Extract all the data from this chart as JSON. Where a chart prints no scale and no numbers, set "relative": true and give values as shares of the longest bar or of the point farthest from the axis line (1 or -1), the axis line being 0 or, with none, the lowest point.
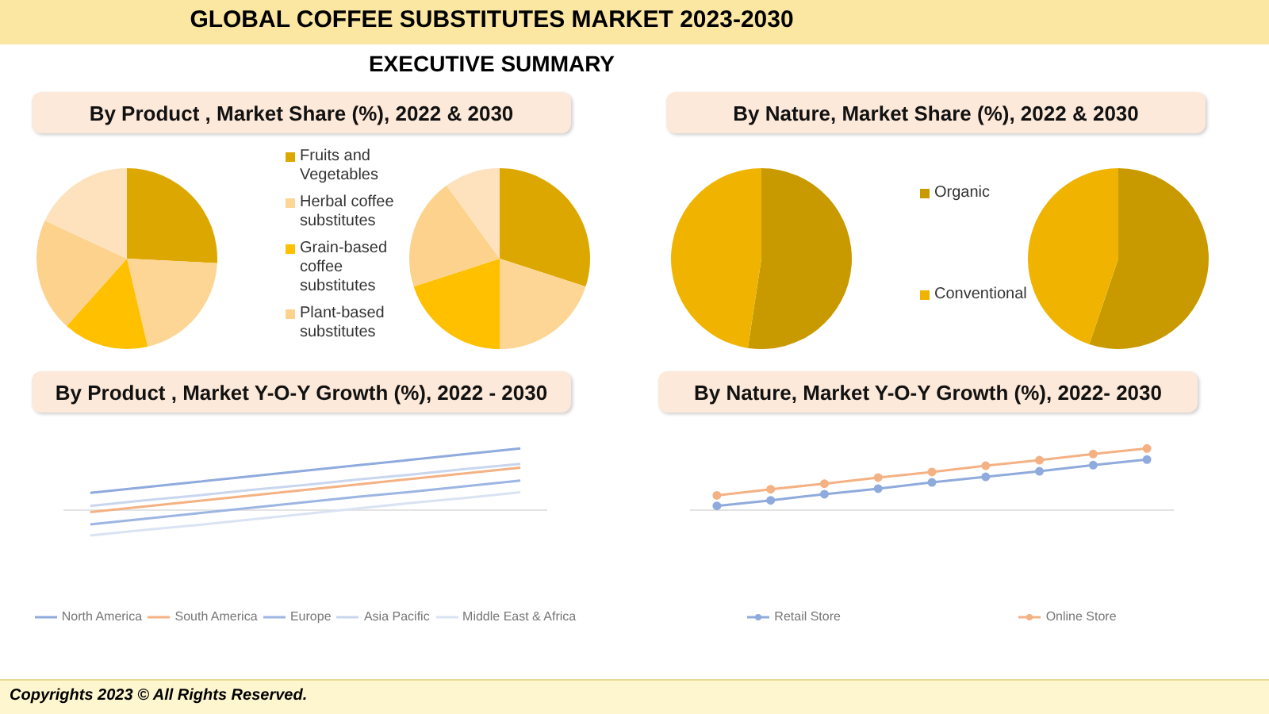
{
  "chart_data": [
    {
      "type": "other",
      "title": "GLOBAL COFFEE SUBSTITUTES MARKET 2023-2030",
      "subtitle": "EXECUTIVE SUMMARY",
      "annotations": [
        "Copyrights 2023 © All Rights Reserved."
      ]
    },
    {
      "type": "pie",
      "title": "By Product , Market Share (%), 2022 & 2030",
      "categories": [
        "Fruits and Vegetables",
        "Herbal coffee substitutes",
        "Grain-based coffee substitutes",
        "Plant-based substitutes",
        null
      ],
      "values": [
        25.8,
        20.5,
        15.3,
        20.3,
        18.1
      ],
      "colors": [
        "#dca800",
        "#fdd594",
        "#ffc000",
        "#fdd28c",
        "#fde2bd"
      ],
      "legend": "right"
    },
    {
      "type": "pie",
      "categories": [
        null,
        null,
        null,
        null,
        null
      ],
      "values": [
        30,
        20,
        20,
        20,
        10
      ],
      "colors": [
        "#dca800",
        "#fdd594",
        "#ffc000",
        "#fdd28c",
        "#fde2bd"
      ]
    },
    {
      "type": "pie",
      "title": "By Nature, Market Share (%), 2022 & 2030",
      "categories": [
        "Organic",
        "Conventional"
      ],
      "values": [
        52.4,
        47.6
      ],
      "colors": [
        "#c99a00",
        "#f0b400"
      ],
      "legend": "right"
    },
    {
      "type": "pie",
      "categories": [
        null,
        null
      ],
      "values": [
        55.2,
        44.8
      ],
      "colors": [
        "#c99a00",
        "#f0b400"
      ]
    },
    {
      "type": "line",
      "title": "By Product , Market Y-O-Y Growth (%), 2022 - 2030",
      "categories": [
        null,
        null,
        null,
        null,
        null,
        null,
        null,
        null,
        null
      ],
      "relative": true,
      "legend": "bottom",
      "series": [
        {
          "name": "North America",
          "color": "#8faadc",
          "values": [
            0.28,
            0.37,
            0.46,
            0.55,
            0.64,
            0.73,
            0.82,
            0.91,
            1
          ]
        },
        {
          "name": "South America",
          "color": "#f4b183",
          "values": [
            -0.03,
            0.06,
            0.15,
            0.24,
            0.33,
            0.42,
            0.51,
            0.6,
            0.69
          ]
        },
        {
          "name": "Europe",
          "color": "#9db5e3",
          "values": [
            -0.23,
            -0.14,
            -0.05,
            0.04,
            0.13,
            0.22,
            0.3,
            0.39,
            0.48
          ]
        },
        {
          "name": "Asia Pacific",
          "color": "#c9d6ee",
          "values": [
            0.07,
            0.16,
            0.24,
            0.33,
            0.41,
            0.5,
            0.58,
            0.67,
            0.75
          ]
        },
        {
          "name": "Middle East & Africa",
          "color": "#dae3f3",
          "values": [
            -0.41,
            -0.32,
            -0.24,
            -0.15,
            -0.06,
            0.03,
            0.12,
            0.2,
            0.29
          ]
        }
      ]
    },
    {
      "type": "line",
      "title": "By Nature, Market Y-O-Y Growth (%), 2022- 2030",
      "categories": [
        null,
        null,
        null,
        null,
        null,
        null,
        null,
        null,
        null
      ],
      "relative": true,
      "legend": "bottom",
      "marker": "circle",
      "series": [
        {
          "name": "Retail Store",
          "color": "#8faadc",
          "values": [
            0.07,
            0.16,
            0.26,
            0.35,
            0.45,
            0.54,
            0.63,
            0.73,
            0.82
          ]
        },
        {
          "name": "Online Store",
          "color": "#f4b183",
          "values": [
            0.24,
            0.34,
            0.43,
            0.53,
            0.62,
            0.72,
            0.81,
            0.91,
            1
          ]
        }
      ]
    }
  ]
}
